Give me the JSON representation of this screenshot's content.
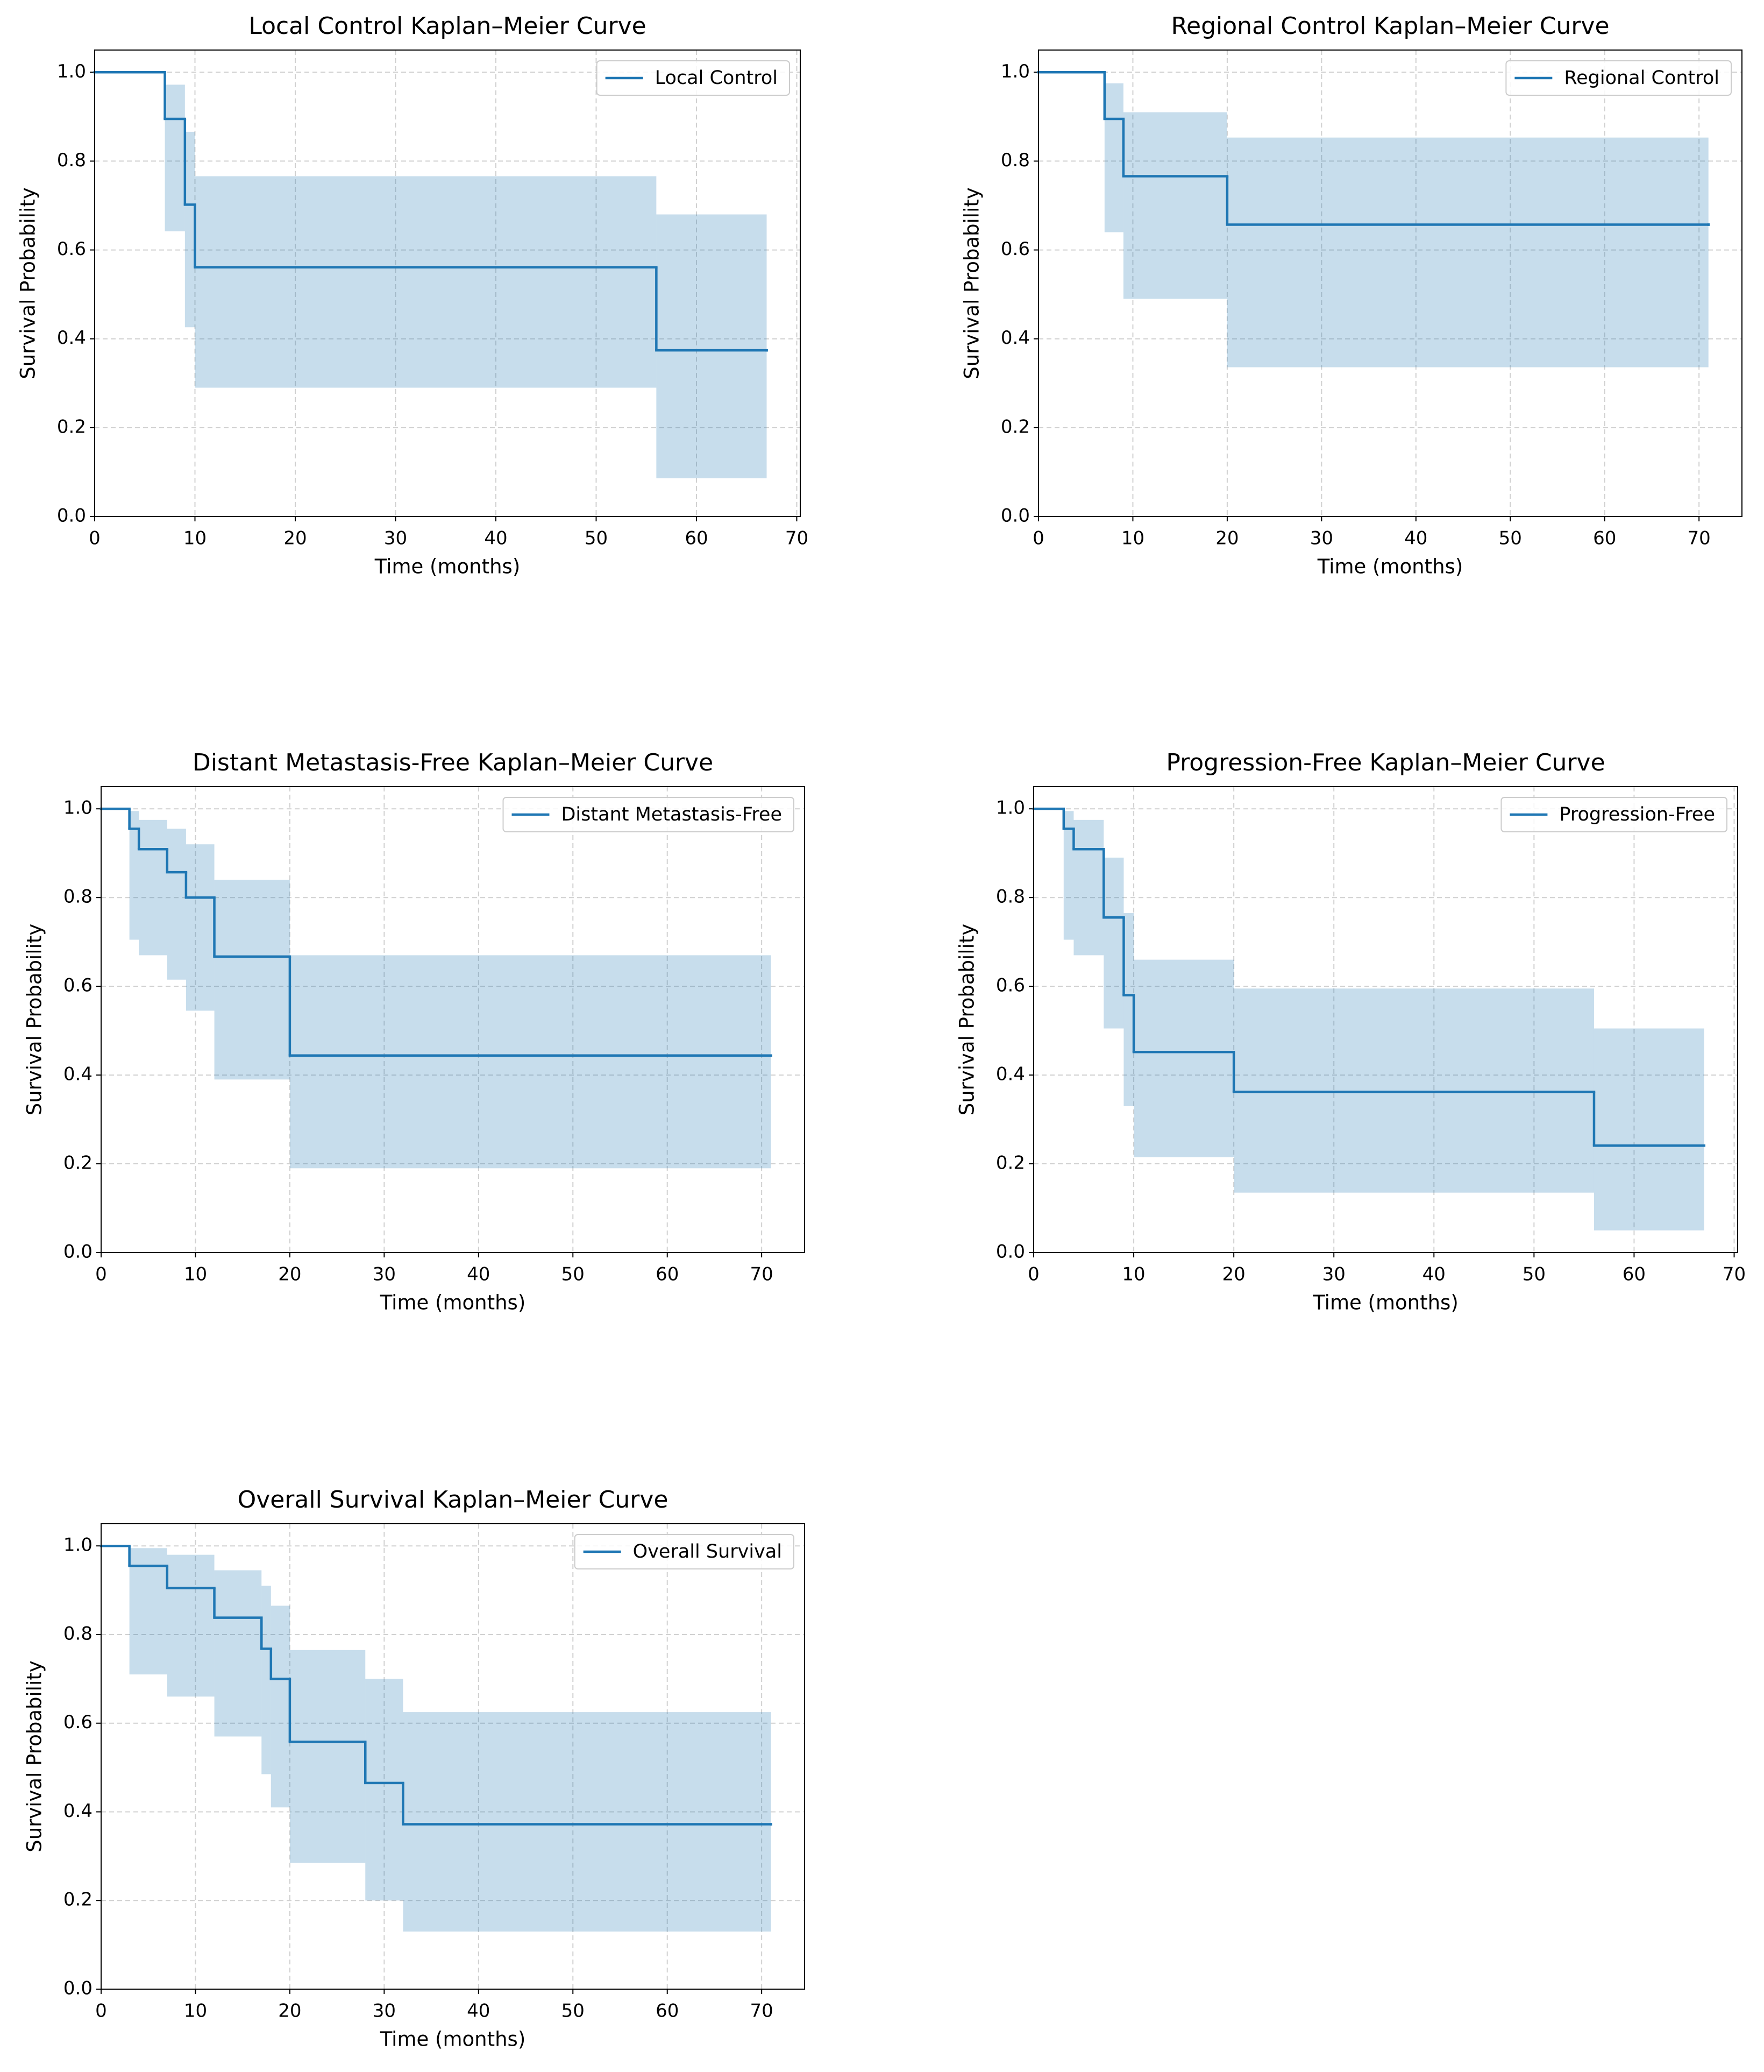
{
  "chart_data": [
    {
      "type": "step",
      "title": "Local Control Kaplan–Meier Curve",
      "xlabel": "Time (months)",
      "ylabel": "Survival Probability",
      "x": [
        0,
        7,
        9,
        10,
        56,
        67
      ],
      "series": [
        {
          "name": "Local Control",
          "color": "#1f77b4",
          "values": [
            1.0,
            0.895,
            0.702,
            0.561,
            0.374,
            0.374
          ]
        }
      ],
      "ci_upper": [
        1.0,
        0.972,
        0.866,
        0.766,
        0.68,
        0.68
      ],
      "ci_lower": [
        1.0,
        0.642,
        0.426,
        0.29,
        0.086,
        0.086
      ],
      "xlim": [
        0,
        70.35
      ],
      "ylim": [
        0,
        1.05
      ],
      "xticks": [
        0,
        10,
        20,
        30,
        40,
        50,
        60,
        70
      ],
      "yticks": [
        {
          "value": 0,
          "label": "0.0"
        },
        0.2,
        0.4,
        0.6,
        0.8,
        {
          "value": 1,
          "label": "1.0"
        }
      ],
      "grid": true,
      "legend": "upper right"
    },
    {
      "type": "step",
      "title": "Regional Control Kaplan–Meier Curve",
      "xlabel": "Time (months)",
      "ylabel": "Survival Probability",
      "x": [
        0,
        7,
        9,
        20,
        71
      ],
      "series": [
        {
          "name": "Regional Control",
          "color": "#1f77b4",
          "values": [
            1.0,
            0.895,
            0.766,
            0.657,
            0.657
          ]
        }
      ],
      "ci_upper": [
        1.0,
        0.975,
        0.91,
        0.853,
        0.853
      ],
      "ci_lower": [
        1.0,
        0.64,
        0.49,
        0.336,
        0.336
      ],
      "xlim": [
        0,
        74.55
      ],
      "ylim": [
        0,
        1.05
      ],
      "xticks": [
        0,
        10,
        20,
        30,
        40,
        50,
        60,
        70
      ],
      "yticks": [
        {
          "value": 0,
          "label": "0.0"
        },
        0.2,
        0.4,
        0.6,
        0.8,
        {
          "value": 1,
          "label": "1.0"
        }
      ],
      "grid": true,
      "legend": "upper right"
    },
    {
      "type": "step",
      "title": "Distant Metastasis-Free Kaplan–Meier Curve",
      "xlabel": "Time (months)",
      "ylabel": "Survival Probability",
      "x": [
        0,
        3,
        4,
        7,
        9,
        12,
        20,
        71
      ],
      "series": [
        {
          "name": "Distant Metastasis-Free",
          "color": "#1f77b4",
          "values": [
            1.0,
            0.955,
            0.909,
            0.857,
            0.8,
            0.667,
            0.444,
            0.444
          ]
        }
      ],
      "ci_upper": [
        1.0,
        0.995,
        0.975,
        0.955,
        0.92,
        0.84,
        0.67,
        0.67
      ],
      "ci_lower": [
        1.0,
        0.705,
        0.67,
        0.615,
        0.545,
        0.39,
        0.19,
        0.19
      ],
      "xlim": [
        0,
        74.55
      ],
      "ylim": [
        0,
        1.05
      ],
      "xticks": [
        0,
        10,
        20,
        30,
        40,
        50,
        60,
        70
      ],
      "yticks": [
        {
          "value": 0,
          "label": "0.0"
        },
        0.2,
        0.4,
        0.6,
        0.8,
        {
          "value": 1,
          "label": "1.0"
        }
      ],
      "grid": true,
      "legend": "upper right"
    },
    {
      "type": "step",
      "title": "Progression-Free Kaplan–Meier Curve",
      "xlabel": "Time (months)",
      "ylabel": "Survival Probability",
      "x": [
        0,
        3,
        4,
        7,
        9,
        10,
        20,
        56,
        67
      ],
      "series": [
        {
          "name": "Progression-Free",
          "color": "#1f77b4",
          "values": [
            1.0,
            0.955,
            0.909,
            0.755,
            0.58,
            0.452,
            0.362,
            0.241,
            0.241
          ]
        }
      ],
      "ci_upper": [
        1.0,
        0.995,
        0.975,
        0.89,
        0.765,
        0.66,
        0.595,
        0.505,
        0.505
      ],
      "ci_lower": [
        1.0,
        0.705,
        0.67,
        0.505,
        0.33,
        0.215,
        0.135,
        0.05,
        0.05
      ],
      "xlim": [
        0,
        70.35
      ],
      "ylim": [
        0,
        1.05
      ],
      "xticks": [
        0,
        10,
        20,
        30,
        40,
        50,
        60,
        70
      ],
      "yticks": [
        {
          "value": 0,
          "label": "0.0"
        },
        0.2,
        0.4,
        0.6,
        0.8,
        {
          "value": 1,
          "label": "1.0"
        }
      ],
      "grid": true,
      "legend": "upper right"
    },
    {
      "type": "step",
      "title": "Overall Survival Kaplan–Meier Curve",
      "xlabel": "Time (months)",
      "ylabel": "Survival Probability",
      "x": [
        0,
        3,
        7,
        12,
        17,
        18,
        20,
        28,
        32,
        71
      ],
      "series": [
        {
          "name": "Overall Survival",
          "color": "#1f77b4",
          "values": [
            1.0,
            0.955,
            0.905,
            0.838,
            0.768,
            0.7,
            0.558,
            0.465,
            0.372,
            0.372
          ]
        }
      ],
      "ci_upper": [
        1.0,
        0.995,
        0.98,
        0.945,
        0.91,
        0.865,
        0.765,
        0.7,
        0.625,
        0.625
      ],
      "ci_lower": [
        1.0,
        0.71,
        0.66,
        0.57,
        0.485,
        0.41,
        0.285,
        0.2,
        0.13,
        0.13
      ],
      "xlim": [
        0,
        74.55
      ],
      "ylim": [
        0,
        1.05
      ],
      "xticks": [
        0,
        10,
        20,
        30,
        40,
        50,
        60,
        70
      ],
      "yticks": [
        {
          "value": 0,
          "label": "0.0"
        },
        0.2,
        0.4,
        0.6,
        0.8,
        {
          "value": 1,
          "label": "1.0"
        }
      ],
      "grid": true,
      "legend": "upper right"
    }
  ]
}
